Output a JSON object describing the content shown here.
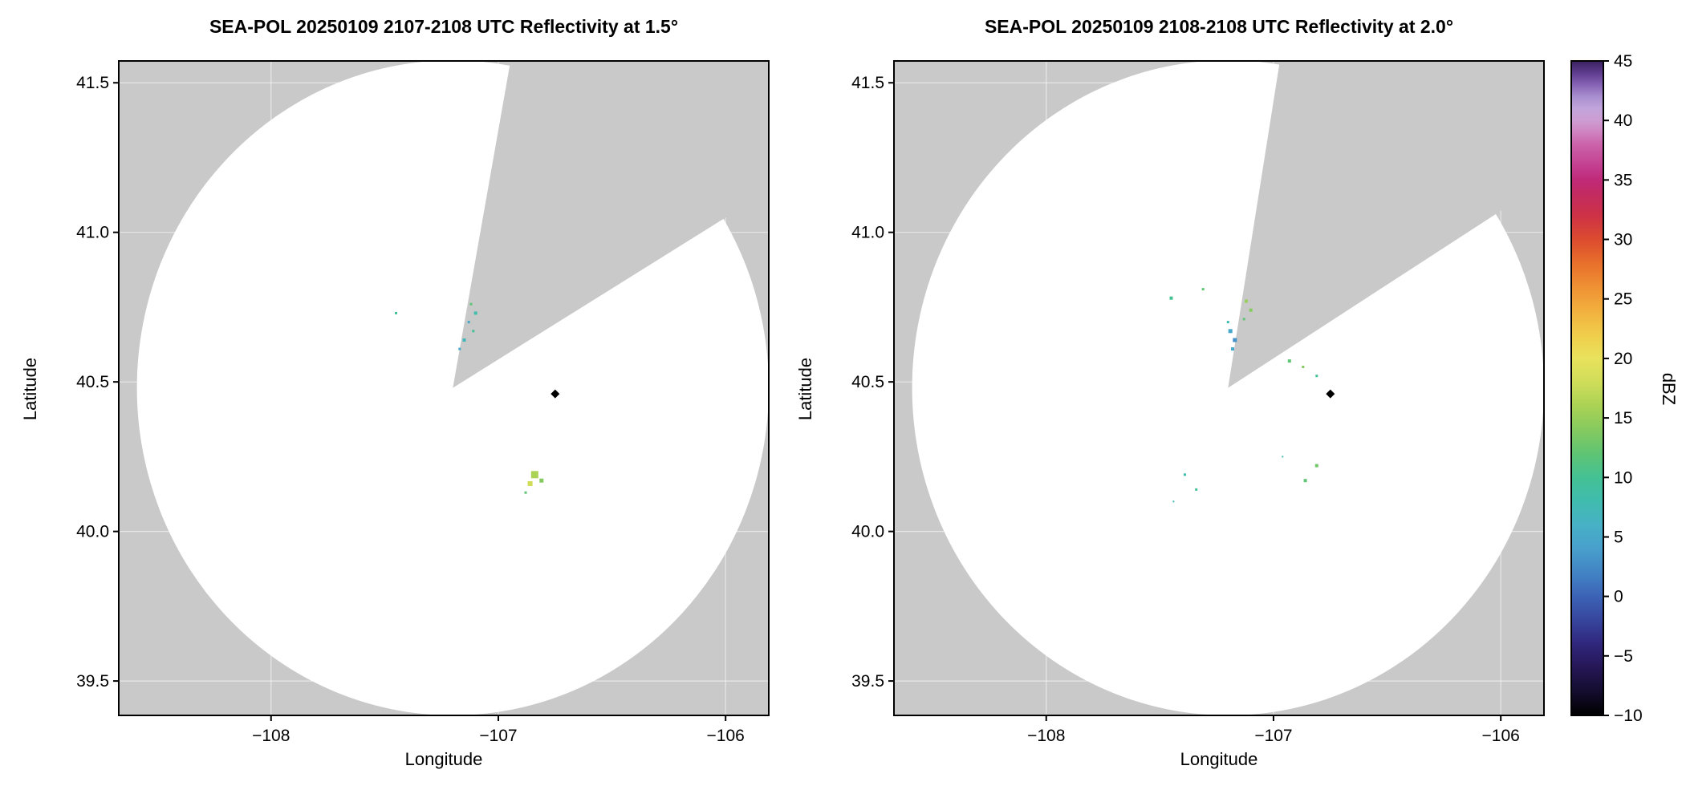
{
  "figure": {
    "background": "#ffffff"
  },
  "chart_data": {
    "type": "heatmap",
    "description": "Two SEA-POL radar PPI reflectivity panels (elevation 1.5 and 2.0 degrees) over a lat/lon map with a shared dBZ colorbar. Gray = outside coverage / blocked sector, white circle = radar coverage, small colored pixels = reflectivity echoes, black diamond = site marker.",
    "colors": {
      "masked_gray": "#c9c9c9",
      "coverage_white": "#ffffff",
      "frame": "#000000",
      "grid": "#ffffff"
    },
    "panels": [
      {
        "id": "left",
        "title": "SEA-POL 20250109 2107-2108 UTC Reflectivity at 1.5°",
        "date": "20250109",
        "time_utc": "2107-2108",
        "elevation_deg": 1.5,
        "xlabel": "Longitude",
        "ylabel": "Latitude",
        "xlim": [
          -108.67,
          -105.81
        ],
        "ylim": [
          39.385,
          41.573
        ],
        "xticks": [
          -108,
          -107,
          -106
        ],
        "yticks": [
          39.5,
          40.0,
          40.5,
          41.0,
          41.5
        ],
        "radar": {
          "lon": -107.2,
          "lat": 40.48,
          "rx_deg": 1.39,
          "ry_deg": 1.095
        },
        "blocked_sector_azimuth": [
          10,
          58
        ],
        "marker": {
          "lon": -106.75,
          "lat": 40.46
        },
        "echoes": [
          {
            "lon": -107.45,
            "lat": 40.73,
            "dbz": 10,
            "s": 3
          },
          {
            "lon": -107.12,
            "lat": 40.76,
            "dbz": 12,
            "s": 3
          },
          {
            "lon": -107.1,
            "lat": 40.73,
            "dbz": 8,
            "s": 4
          },
          {
            "lon": -107.13,
            "lat": 40.7,
            "dbz": 5,
            "s": 3
          },
          {
            "lon": -107.11,
            "lat": 40.67,
            "dbz": 10,
            "s": 3
          },
          {
            "lon": -107.15,
            "lat": 40.64,
            "dbz": 7,
            "s": 4
          },
          {
            "lon": -107.17,
            "lat": 40.61,
            "dbz": 5,
            "s": 3
          },
          {
            "lon": -106.84,
            "lat": 40.19,
            "dbz": 16,
            "s": 9
          },
          {
            "lon": -106.81,
            "lat": 40.17,
            "dbz": 14,
            "s": 5
          },
          {
            "lon": -106.86,
            "lat": 40.16,
            "dbz": 18,
            "s": 6
          },
          {
            "lon": -106.88,
            "lat": 40.13,
            "dbz": 12,
            "s": 3
          }
        ]
      },
      {
        "id": "right",
        "title": "SEA-POL 20250109 2108-2108 UTC Reflectivity at 2.0°",
        "date": "20250109",
        "time_utc": "2108-2108",
        "elevation_deg": 2.0,
        "xlabel": "Longitude",
        "ylabel": "Latitude",
        "xlim": [
          -108.67,
          -105.81
        ],
        "ylim": [
          39.385,
          41.573
        ],
        "xticks": [
          -108,
          -107,
          -106
        ],
        "yticks": [
          39.5,
          40.0,
          40.5,
          41.0,
          41.5
        ],
        "radar": {
          "lon": -107.2,
          "lat": 40.48,
          "rx_deg": 1.39,
          "ry_deg": 1.095
        },
        "blocked_sector_azimuth": [
          9,
          57
        ],
        "marker": {
          "lon": -106.75,
          "lat": 40.46
        },
        "echoes": [
          {
            "lon": -107.45,
            "lat": 40.78,
            "dbz": 10,
            "s": 4
          },
          {
            "lon": -107.31,
            "lat": 40.81,
            "dbz": 12,
            "s": 3
          },
          {
            "lon": -107.12,
            "lat": 40.77,
            "dbz": 15,
            "s": 4
          },
          {
            "lon": -107.1,
            "lat": 40.74,
            "dbz": 14,
            "s": 4
          },
          {
            "lon": -107.13,
            "lat": 40.71,
            "dbz": 12,
            "s": 3
          },
          {
            "lon": -107.2,
            "lat": 40.7,
            "dbz": 8,
            "s": 3
          },
          {
            "lon": -107.19,
            "lat": 40.67,
            "dbz": 5,
            "s": 5
          },
          {
            "lon": -107.17,
            "lat": 40.64,
            "dbz": 3,
            "s": 5
          },
          {
            "lon": -107.18,
            "lat": 40.61,
            "dbz": 5,
            "s": 4
          },
          {
            "lon": -106.93,
            "lat": 40.57,
            "dbz": 12,
            "s": 4
          },
          {
            "lon": -106.87,
            "lat": 40.55,
            "dbz": 14,
            "s": 3
          },
          {
            "lon": -106.81,
            "lat": 40.52,
            "dbz": 10,
            "s": 3
          },
          {
            "lon": -106.96,
            "lat": 40.25,
            "dbz": 8,
            "s": 2
          },
          {
            "lon": -106.81,
            "lat": 40.22,
            "dbz": 13,
            "s": 4
          },
          {
            "lon": -106.86,
            "lat": 40.17,
            "dbz": 12,
            "s": 4
          },
          {
            "lon": -107.39,
            "lat": 40.19,
            "dbz": 8,
            "s": 3
          },
          {
            "lon": -107.34,
            "lat": 40.14,
            "dbz": 10,
            "s": 3
          },
          {
            "lon": -107.44,
            "lat": 40.1,
            "dbz": 8,
            "s": 2
          }
        ]
      }
    ],
    "colorbar": {
      "label": "dBZ",
      "min": -10,
      "max": 45,
      "ticks": [
        -10,
        -5,
        0,
        5,
        10,
        15,
        20,
        25,
        30,
        35,
        40,
        45
      ],
      "stops": [
        [
          -10,
          "#000000"
        ],
        [
          -8,
          "#140d2e"
        ],
        [
          -6,
          "#251655"
        ],
        [
          -4,
          "#30277c"
        ],
        [
          -2,
          "#36459c"
        ],
        [
          0,
          "#3c63b6"
        ],
        [
          2,
          "#4284c4"
        ],
        [
          4,
          "#489fcc"
        ],
        [
          6,
          "#47b1c5"
        ],
        [
          8,
          "#40bcae"
        ],
        [
          10,
          "#44c194"
        ],
        [
          12,
          "#5fc473"
        ],
        [
          14,
          "#85ca5f"
        ],
        [
          16,
          "#aad255"
        ],
        [
          18,
          "#cfdd59"
        ],
        [
          20,
          "#e9e25c"
        ],
        [
          22,
          "#f0cd4b"
        ],
        [
          24,
          "#f2b03e"
        ],
        [
          26,
          "#ef9134"
        ],
        [
          28,
          "#e86f2b"
        ],
        [
          30,
          "#dc4b2e"
        ],
        [
          32,
          "#cd3246"
        ],
        [
          34,
          "#c22a64"
        ],
        [
          35,
          "#c02a78"
        ],
        [
          36,
          "#c33b8d"
        ],
        [
          38,
          "#cb63ab"
        ],
        [
          39,
          "#cf83c0"
        ],
        [
          40,
          "#cd9dd3"
        ],
        [
          41,
          "#c1a4da"
        ],
        [
          42,
          "#a98fd0"
        ],
        [
          43,
          "#8663b4"
        ],
        [
          44,
          "#5f3c8e"
        ],
        [
          45,
          "#3a2260"
        ]
      ]
    }
  }
}
